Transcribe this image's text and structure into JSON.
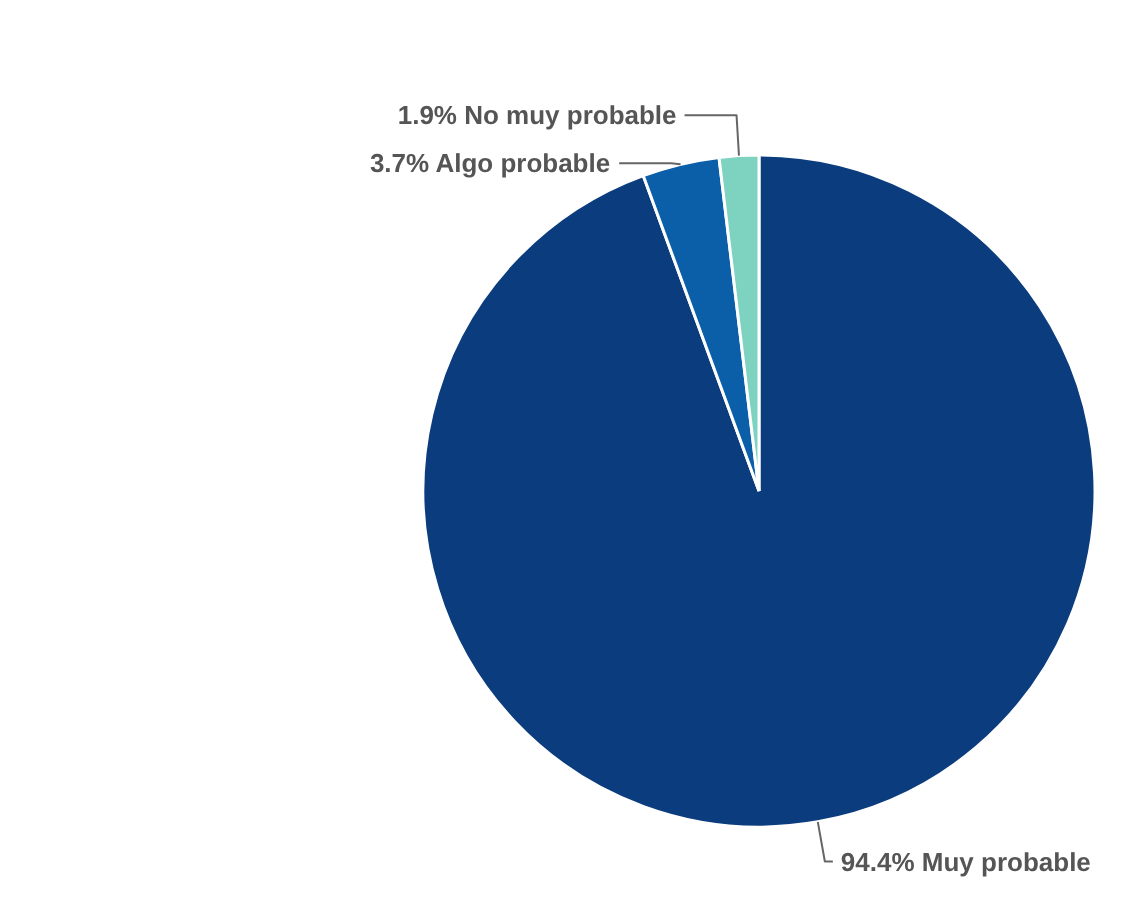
{
  "chart_data": {
    "type": "pie",
    "categories": [
      "Muy probable",
      "Algo probable",
      "No muy probable"
    ],
    "values": [
      94.4,
      3.7,
      1.9
    ],
    "colors": [
      "#0b3c7d",
      "#0b5ea8",
      "#7dd3c0"
    ],
    "value_labels": [
      "94.4%",
      "3.7%",
      "1.9%"
    ]
  }
}
